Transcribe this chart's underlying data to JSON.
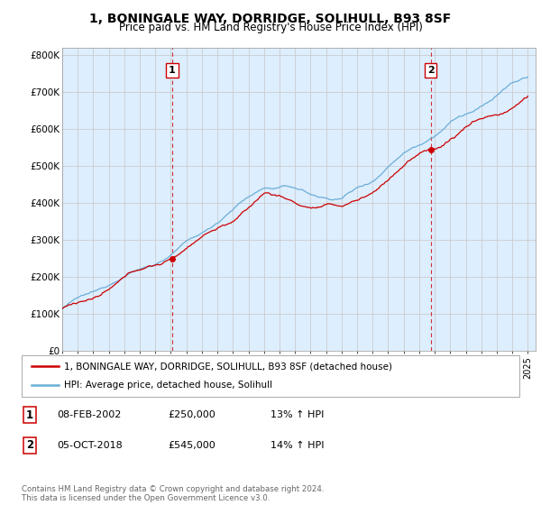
{
  "title": "1, BONINGALE WAY, DORRIDGE, SOLIHULL, B93 8SF",
  "subtitle": "Price paid vs. HM Land Registry's House Price Index (HPI)",
  "ylim": [
    0,
    820000
  ],
  "yticks": [
    0,
    100000,
    200000,
    300000,
    400000,
    500000,
    600000,
    700000,
    800000
  ],
  "ytick_labels": [
    "£0",
    "£100K",
    "£200K",
    "£300K",
    "£400K",
    "£500K",
    "£600K",
    "£700K",
    "£800K"
  ],
  "hpi_color": "#6baed6",
  "price_color": "#cc0000",
  "vline_color": "#cc0000",
  "plot_bg_color": "#ddeeff",
  "legend_label_price": "1, BONINGALE WAY, DORRIDGE, SOLIHULL, B93 8SF (detached house)",
  "legend_label_hpi": "HPI: Average price, detached house, Solihull",
  "table_entries": [
    {
      "num": "1",
      "date": "08-FEB-2002",
      "price": "£250,000",
      "change": "13% ↑ HPI"
    },
    {
      "num": "2",
      "date": "05-OCT-2018",
      "price": "£545,000",
      "change": "14% ↑ HPI"
    }
  ],
  "footnote": "Contains HM Land Registry data © Crown copyright and database right 2024.\nThis data is licensed under the Open Government Licence v3.0.",
  "background_color": "#ffffff",
  "grid_color": "#cccccc",
  "title_fontsize": 10,
  "subtitle_fontsize": 8.5,
  "tick_fontsize": 7.5
}
